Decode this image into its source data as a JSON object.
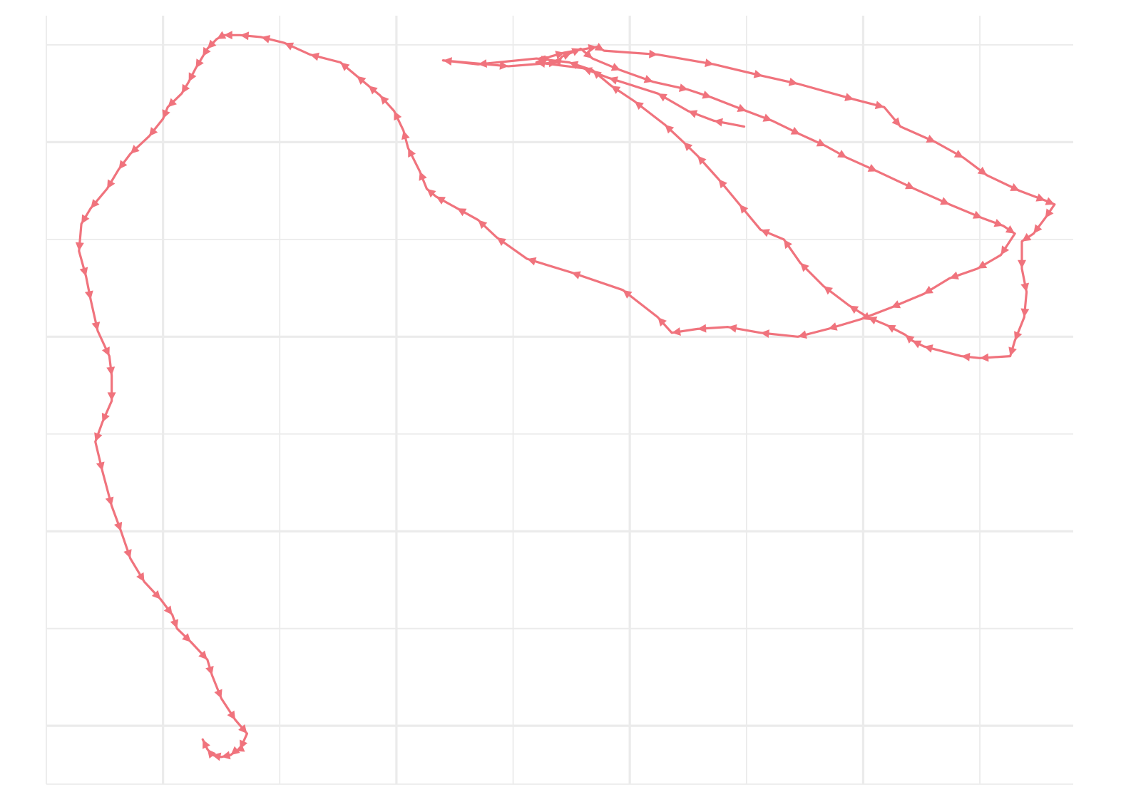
{
  "chart_data": {
    "type": "line",
    "title": "",
    "xlabel": "",
    "ylabel": "",
    "grid": true,
    "legend": "none",
    "arrows": true,
    "xlim": [
      0,
      44
    ],
    "ylim": [
      0,
      39.5
    ],
    "x_major": [
      5,
      15,
      25,
      35
    ],
    "x_minor": [
      0,
      10,
      20,
      30,
      40
    ],
    "y_major": [
      3,
      13,
      23,
      33
    ],
    "y_minor": [
      0,
      8,
      18,
      28,
      38
    ],
    "series": [
      {
        "color": "#f0737d",
        "points": [
          [
            29.9,
            33.8
          ],
          [
            28.6,
            34.1
          ],
          [
            27.5,
            34.6
          ],
          [
            26.2,
            35.5
          ],
          [
            24.1,
            36.3
          ],
          [
            23.0,
            36.8
          ],
          [
            21.0,
            37.1
          ],
          [
            21.6,
            37.4
          ],
          [
            22.2,
            37.6
          ],
          [
            23.6,
            37.9
          ],
          [
            23.9,
            37.7
          ],
          [
            26.2,
            37.5
          ],
          [
            28.6,
            37.0
          ],
          [
            30.7,
            36.4
          ],
          [
            32.2,
            36.0
          ],
          [
            34.6,
            35.2
          ],
          [
            35.9,
            34.8
          ],
          [
            36.6,
            33.8
          ],
          [
            38.1,
            33.0
          ],
          [
            39.3,
            32.2
          ],
          [
            40.3,
            31.3
          ],
          [
            41.7,
            30.5
          ],
          [
            42.8,
            30.0
          ],
          [
            43.2,
            29.8
          ],
          [
            42.8,
            29.1
          ],
          [
            42.3,
            28.3
          ],
          [
            41.8,
            27.9
          ],
          [
            41.8,
            26.5
          ],
          [
            42.0,
            25.3
          ],
          [
            41.9,
            24.0
          ],
          [
            41.5,
            22.8
          ],
          [
            41.3,
            22.0
          ],
          [
            40.0,
            21.9
          ],
          [
            39.2,
            22.0
          ],
          [
            37.6,
            22.5
          ],
          [
            37.1,
            22.8
          ],
          [
            36.8,
            23.1
          ],
          [
            36.0,
            23.6
          ],
          [
            35.2,
            24.0
          ],
          [
            34.4,
            24.6
          ],
          [
            33.3,
            25.6
          ],
          [
            32.3,
            26.8
          ],
          [
            31.6,
            28.0
          ],
          [
            30.6,
            28.5
          ],
          [
            29.7,
            29.8
          ],
          [
            28.8,
            31.1
          ],
          [
            27.9,
            32.3
          ],
          [
            27.3,
            33.0
          ],
          [
            26.5,
            33.9
          ],
          [
            25.2,
            35.1
          ],
          [
            24.2,
            35.9
          ],
          [
            23.4,
            36.7
          ],
          [
            22.4,
            37.1
          ],
          [
            21.0,
            37.3
          ],
          [
            18.5,
            37.0
          ],
          [
            17.0,
            37.2
          ],
          [
            19.8,
            36.9
          ],
          [
            21.9,
            37.1
          ],
          [
            22.1,
            37.4
          ],
          [
            22.5,
            37.6
          ],
          [
            22.9,
            37.8
          ],
          [
            23.4,
            37.3
          ],
          [
            24.6,
            36.7
          ],
          [
            26.0,
            36.1
          ],
          [
            27.5,
            35.7
          ],
          [
            28.5,
            35.3
          ],
          [
            30.0,
            34.6
          ],
          [
            31.1,
            34.1
          ],
          [
            32.3,
            33.4
          ],
          [
            33.4,
            32.8
          ],
          [
            34.3,
            32.2
          ],
          [
            35.6,
            31.5
          ],
          [
            37.2,
            30.6
          ],
          [
            38.7,
            29.8
          ],
          [
            40.1,
            29.1
          ],
          [
            41.0,
            28.7
          ],
          [
            41.5,
            28.3
          ],
          [
            40.9,
            27.2
          ],
          [
            39.9,
            26.5
          ],
          [
            38.7,
            26.0
          ],
          [
            37.6,
            25.2
          ],
          [
            36.2,
            24.5
          ],
          [
            34.9,
            23.9
          ],
          [
            33.5,
            23.4
          ],
          [
            32.2,
            23.0
          ],
          [
            30.6,
            23.2
          ],
          [
            29.2,
            23.5
          ],
          [
            27.9,
            23.4
          ],
          [
            26.8,
            23.2
          ],
          [
            26.2,
            24.0
          ],
          [
            24.7,
            25.4
          ],
          [
            22.5,
            26.3
          ],
          [
            20.6,
            27.0
          ],
          [
            19.3,
            28.1
          ],
          [
            18.5,
            29.0
          ],
          [
            17.6,
            29.6
          ],
          [
            16.7,
            30.2
          ],
          [
            16.3,
            30.6
          ],
          [
            16.0,
            31.5
          ],
          [
            15.5,
            32.7
          ],
          [
            15.3,
            33.6
          ],
          [
            14.9,
            34.6
          ],
          [
            14.3,
            35.4
          ],
          [
            13.8,
            35.9
          ],
          [
            13.3,
            36.4
          ],
          [
            12.6,
            37.1
          ],
          [
            11.3,
            37.5
          ],
          [
            10.2,
            38.1
          ],
          [
            9.2,
            38.4
          ],
          [
            8.3,
            38.5
          ],
          [
            7.6,
            38.5
          ],
          [
            7.3,
            38.3
          ],
          [
            6.9,
            37.8
          ],
          [
            6.7,
            37.4
          ],
          [
            6.4,
            36.8
          ],
          [
            6.1,
            36.1
          ],
          [
            5.8,
            35.5
          ],
          [
            5.2,
            34.8
          ],
          [
            5.0,
            34.2
          ],
          [
            4.4,
            33.3
          ],
          [
            3.6,
            32.4
          ],
          [
            3.1,
            31.6
          ],
          [
            2.6,
            30.6
          ],
          [
            1.9,
            29.6
          ],
          [
            1.5,
            28.8
          ],
          [
            1.4,
            27.4
          ],
          [
            1.7,
            26.1
          ],
          [
            1.9,
            24.9
          ],
          [
            2.2,
            23.3
          ],
          [
            2.7,
            22.0
          ],
          [
            2.8,
            21.0
          ],
          [
            2.8,
            19.7
          ],
          [
            2.4,
            18.6
          ],
          [
            2.1,
            17.6
          ],
          [
            2.4,
            16.1
          ],
          [
            2.8,
            14.3
          ],
          [
            3.2,
            13.0
          ],
          [
            3.6,
            11.6
          ],
          [
            4.2,
            10.4
          ],
          [
            4.9,
            9.5
          ],
          [
            5.4,
            8.7
          ],
          [
            5.6,
            8.0
          ],
          [
            6.2,
            7.3
          ],
          [
            6.9,
            6.4
          ],
          [
            7.1,
            5.6
          ],
          [
            7.5,
            4.4
          ],
          [
            8.1,
            3.3
          ],
          [
            8.6,
            2.6
          ],
          [
            8.3,
            1.8
          ],
          [
            8.1,
            1.7
          ],
          [
            7.9,
            1.5
          ],
          [
            7.5,
            1.4
          ],
          [
            7.1,
            1.5
          ],
          [
            6.9,
            1.8
          ],
          [
            6.7,
            2.3
          ]
        ]
      }
    ]
  }
}
